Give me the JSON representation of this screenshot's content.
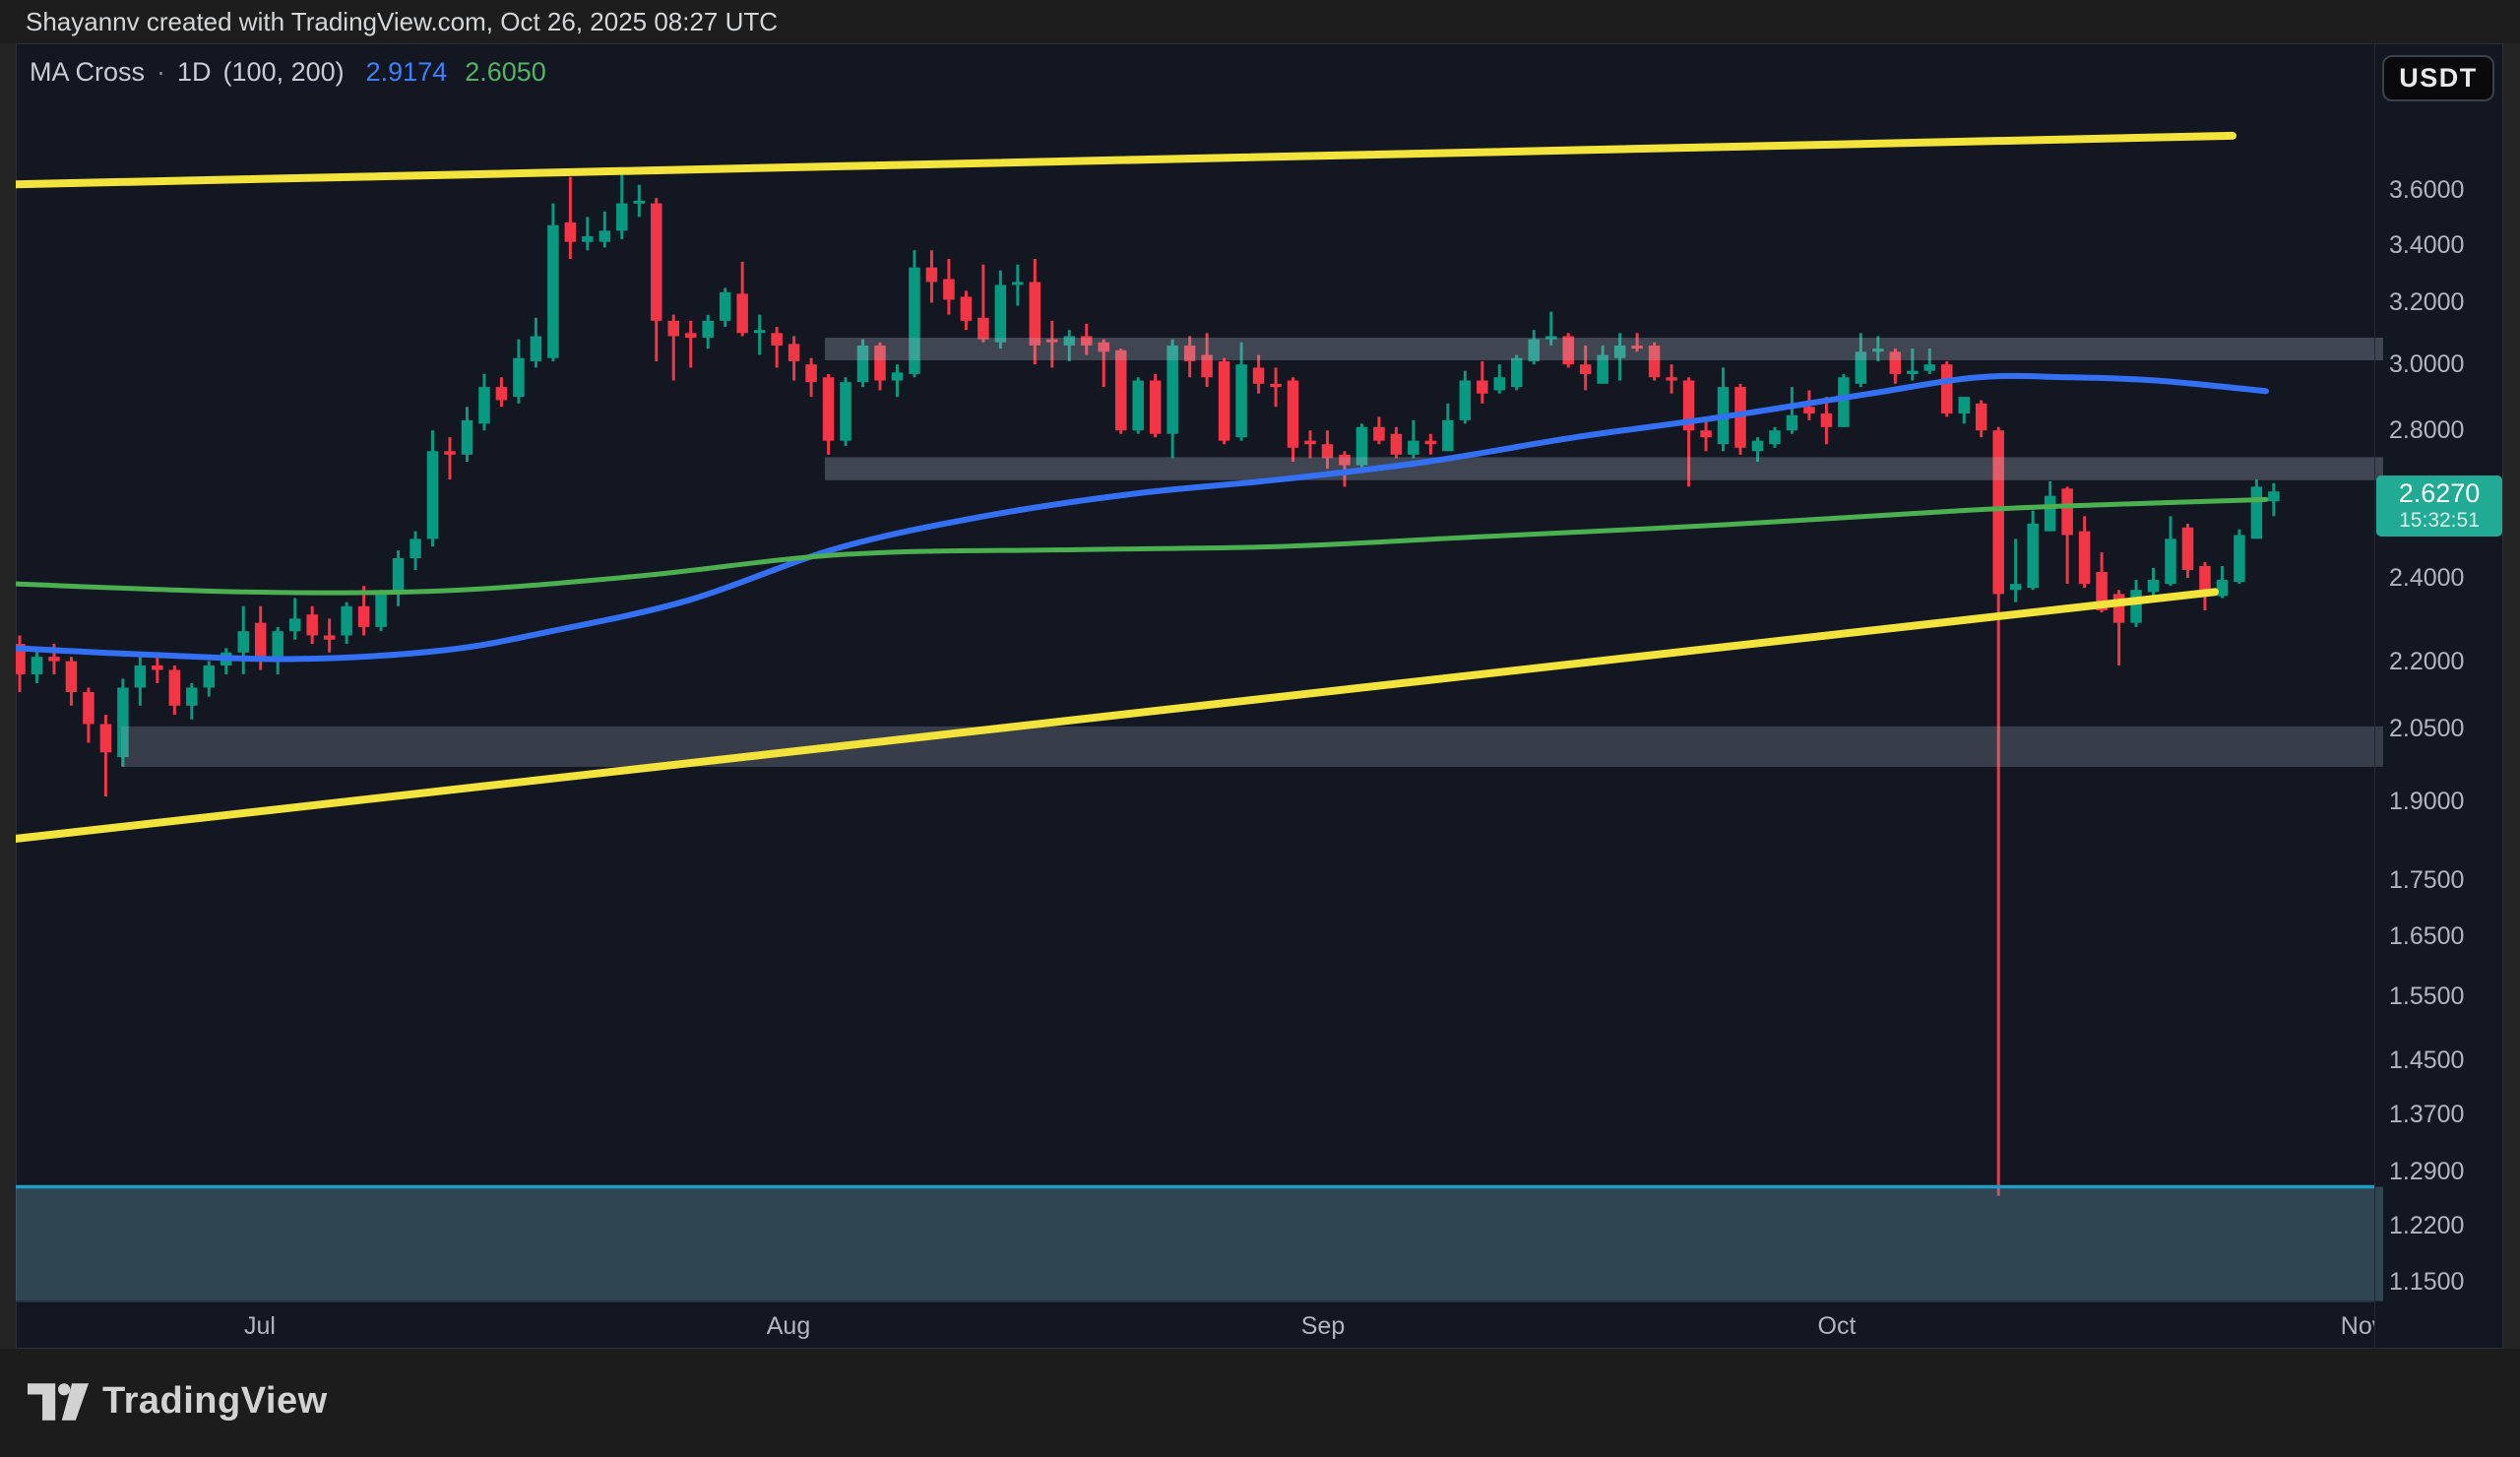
{
  "header": {
    "title": "Shayannv created with TradingView.com, Oct 26, 2025 08:27 UTC"
  },
  "legend": {
    "indicator_name": "MA Cross",
    "separator": "·",
    "interval": "1D",
    "params": "(100, 200)",
    "ma_fast_value": "2.9174",
    "ma_slow_value": "2.6050"
  },
  "symbol_button": {
    "label": "USDT"
  },
  "price_scale": {
    "labels": [
      "3.6000",
      "3.4000",
      "3.2000",
      "3.0000",
      "2.8000",
      "2.4000",
      "2.2000",
      "2.0500",
      "1.9000",
      "1.7500",
      "1.6500",
      "1.5500",
      "1.4500",
      "1.3700",
      "1.2900",
      "1.2200",
      "1.1500"
    ],
    "badge": {
      "price": "2.6270",
      "countdown": "15:32:51"
    }
  },
  "time_scale": {
    "months": [
      {
        "label": "Jul",
        "x": 264
      },
      {
        "label": "Aug",
        "x": 801
      },
      {
        "label": "Sep",
        "x": 1344
      },
      {
        "label": "Oct",
        "x": 1866
      },
      {
        "label": "Nov",
        "x": 2400
      }
    ]
  },
  "footer": {
    "brand": "TradingView"
  },
  "colors": {
    "page_bg": "#242424",
    "header_bg": "#1d1d1d",
    "footer_bg": "#1c1c1c",
    "panel_bg": "#131722",
    "panel_border": "#2a2e39",
    "up": "#089981",
    "down": "#f23645",
    "ma_fast": "#3370f4",
    "ma_slow": "#4caf50",
    "trendline": "#f3e33d",
    "badge_bg": "#22ab94",
    "axis_text": "#b2b5be",
    "header_text": "#d5d6d8",
    "legend_text": "#c9cbd2",
    "value_fast": "#3a80ff",
    "value_slow": "#54b465",
    "logo_text": "#d2d2d2",
    "button_border": "#3c4049",
    "button_bg": "#0a0a0c",
    "zone_gray": "rgba(178,190,205,0.28)",
    "zone_support": "rgba(162,180,192,0.25)",
    "zone_teal_fill": "rgba(110,165,182,0.33)",
    "zone_teal_border": "#1f9cc4"
  },
  "chart_data": {
    "type": "candlestick",
    "title": "MA Cross · 1D (100, 200)",
    "quote_currency": "USDT",
    "interval": "1D",
    "scale": "log",
    "last_price": 2.627,
    "ma_fast_last": 2.9174,
    "ma_slow_last": 2.605,
    "ylim": [
      1.127,
      3.85
    ],
    "x_axis_months": [
      "Jul",
      "Aug",
      "Sep",
      "Oct",
      "Nov"
    ],
    "plot": {
      "x1": 16,
      "y1": 44,
      "x2": 2412,
      "y2": 1322
    },
    "x_start": 20,
    "x_step": 17.48,
    "candle_body_width": 11.5,
    "y_anchors": {
      "top": {
        "price": 3.6,
        "y": 193
      },
      "bottom": {
        "price": 1.15,
        "y": 1302
      }
    },
    "candles": [
      [
        2.24,
        2.26,
        2.13,
        2.17
      ],
      [
        2.17,
        2.23,
        2.15,
        2.21
      ],
      [
        2.21,
        2.24,
        2.17,
        2.2
      ],
      [
        2.2,
        2.21,
        2.1,
        2.13
      ],
      [
        2.13,
        2.14,
        2.02,
        2.06
      ],
      [
        2.06,
        2.08,
        1.91,
        2.0
      ],
      [
        1.99,
        2.16,
        1.97,
        2.14
      ],
      [
        2.14,
        2.21,
        2.1,
        2.19
      ],
      [
        2.19,
        2.22,
        2.15,
        2.18
      ],
      [
        2.18,
        2.19,
        2.08,
        2.1
      ],
      [
        2.1,
        2.15,
        2.07,
        2.14
      ],
      [
        2.14,
        2.2,
        2.12,
        2.19
      ],
      [
        2.19,
        2.23,
        2.17,
        2.22
      ],
      [
        2.22,
        2.33,
        2.17,
        2.27
      ],
      [
        2.29,
        2.33,
        2.18,
        2.21
      ],
      [
        2.21,
        2.28,
        2.17,
        2.27
      ],
      [
        2.27,
        2.35,
        2.25,
        2.3
      ],
      [
        2.31,
        2.33,
        2.24,
        2.26
      ],
      [
        2.26,
        2.3,
        2.22,
        2.25
      ],
      [
        2.26,
        2.34,
        2.24,
        2.33
      ],
      [
        2.33,
        2.38,
        2.26,
        2.28
      ],
      [
        2.28,
        2.37,
        2.27,
        2.36
      ],
      [
        2.36,
        2.47,
        2.33,
        2.45
      ],
      [
        2.45,
        2.52,
        2.42,
        2.5
      ],
      [
        2.5,
        2.8,
        2.48,
        2.74
      ],
      [
        2.74,
        2.78,
        2.66,
        2.73
      ],
      [
        2.73,
        2.87,
        2.71,
        2.83
      ],
      [
        2.82,
        2.97,
        2.8,
        2.93
      ],
      [
        2.93,
        2.96,
        2.87,
        2.89
      ],
      [
        2.9,
        3.08,
        2.88,
        3.02
      ],
      [
        3.01,
        3.15,
        2.99,
        3.09
      ],
      [
        3.02,
        3.55,
        3.01,
        3.47
      ],
      [
        3.48,
        3.65,
        3.35,
        3.41
      ],
      [
        3.41,
        3.5,
        3.38,
        3.43
      ],
      [
        3.41,
        3.52,
        3.39,
        3.45
      ],
      [
        3.45,
        3.66,
        3.42,
        3.55
      ],
      [
        3.55,
        3.62,
        3.5,
        3.56
      ],
      [
        3.55,
        3.57,
        3.01,
        3.14
      ],
      [
        3.14,
        3.16,
        2.95,
        3.09
      ],
      [
        3.1,
        3.14,
        2.99,
        3.085
      ],
      [
        3.085,
        3.16,
        3.05,
        3.14
      ],
      [
        3.14,
        3.25,
        3.12,
        3.235
      ],
      [
        3.23,
        3.34,
        3.09,
        3.1
      ],
      [
        3.1,
        3.16,
        3.03,
        3.11
      ],
      [
        3.1,
        3.12,
        2.99,
        3.06
      ],
      [
        3.065,
        3.09,
        2.95,
        3.01
      ],
      [
        3.0,
        3.02,
        2.9,
        2.945
      ],
      [
        2.96,
        2.97,
        2.73,
        2.77
      ],
      [
        2.77,
        2.96,
        2.755,
        2.945
      ],
      [
        2.945,
        3.08,
        2.93,
        3.06
      ],
      [
        3.06,
        3.07,
        2.92,
        2.95
      ],
      [
        2.95,
        3.0,
        2.9,
        2.975
      ],
      [
        2.97,
        3.38,
        2.96,
        3.32
      ],
      [
        3.32,
        3.38,
        3.2,
        3.27
      ],
      [
        3.28,
        3.35,
        3.16,
        3.21
      ],
      [
        3.22,
        3.24,
        3.11,
        3.14
      ],
      [
        3.15,
        3.33,
        3.07,
        3.08
      ],
      [
        3.07,
        3.31,
        3.05,
        3.26
      ],
      [
        3.26,
        3.33,
        3.19,
        3.27
      ],
      [
        3.27,
        3.35,
        3.0,
        3.06
      ],
      [
        3.08,
        3.14,
        2.99,
        3.07
      ],
      [
        3.06,
        3.11,
        3.01,
        3.09
      ],
      [
        3.09,
        3.13,
        3.03,
        3.06
      ],
      [
        3.07,
        3.08,
        2.93,
        3.04
      ],
      [
        3.045,
        3.05,
        2.79,
        2.8
      ],
      [
        2.8,
        2.96,
        2.79,
        2.95
      ],
      [
        2.95,
        2.97,
        2.78,
        2.79
      ],
      [
        2.79,
        3.08,
        2.72,
        3.06
      ],
      [
        3.06,
        3.09,
        2.96,
        3.01
      ],
      [
        3.03,
        3.1,
        2.93,
        2.96
      ],
      [
        3.01,
        3.02,
        2.76,
        2.77
      ],
      [
        2.78,
        3.07,
        2.77,
        3.0
      ],
      [
        2.99,
        3.03,
        2.91,
        2.94
      ],
      [
        2.94,
        2.99,
        2.87,
        2.93
      ],
      [
        2.95,
        2.96,
        2.71,
        2.75
      ],
      [
        2.77,
        2.8,
        2.72,
        2.76
      ],
      [
        2.76,
        2.8,
        2.69,
        2.72
      ],
      [
        2.73,
        2.74,
        2.64,
        2.7
      ],
      [
        2.7,
        2.82,
        2.69,
        2.81
      ],
      [
        2.81,
        2.84,
        2.76,
        2.77
      ],
      [
        2.79,
        2.81,
        2.72,
        2.73
      ],
      [
        2.73,
        2.83,
        2.72,
        2.77
      ],
      [
        2.77,
        2.79,
        2.73,
        2.76
      ],
      [
        2.74,
        2.88,
        2.74,
        2.83
      ],
      [
        2.83,
        2.98,
        2.82,
        2.95
      ],
      [
        2.95,
        3.01,
        2.88,
        2.91
      ],
      [
        2.92,
        3.0,
        2.91,
        2.96
      ],
      [
        2.93,
        3.03,
        2.92,
        3.02
      ],
      [
        3.01,
        3.11,
        3.0,
        3.08
      ],
      [
        3.08,
        3.17,
        3.06,
        3.09
      ],
      [
        3.09,
        3.1,
        2.99,
        3.0
      ],
      [
        3.0,
        3.06,
        2.92,
        2.97
      ],
      [
        2.94,
        3.06,
        2.94,
        3.03
      ],
      [
        3.02,
        3.1,
        2.95,
        3.06
      ],
      [
        3.06,
        3.1,
        3.04,
        3.05
      ],
      [
        3.06,
        3.07,
        2.95,
        2.96
      ],
      [
        2.96,
        3.0,
        2.91,
        2.95
      ],
      [
        2.95,
        2.96,
        2.64,
        2.8
      ],
      [
        2.8,
        2.84,
        2.74,
        2.78
      ],
      [
        2.76,
        2.99,
        2.74,
        2.93
      ],
      [
        2.93,
        2.94,
        2.73,
        2.75
      ],
      [
        2.74,
        2.78,
        2.71,
        2.77
      ],
      [
        2.76,
        2.81,
        2.75,
        2.8
      ],
      [
        2.8,
        2.93,
        2.79,
        2.845
      ],
      [
        2.87,
        2.92,
        2.83,
        2.85
      ],
      [
        2.85,
        2.9,
        2.76,
        2.81
      ],
      [
        2.81,
        2.97,
        2.81,
        2.96
      ],
      [
        2.94,
        3.1,
        2.93,
        3.04
      ],
      [
        3.04,
        3.09,
        3.01,
        3.05
      ],
      [
        3.04,
        3.05,
        2.94,
        2.97
      ],
      [
        2.97,
        3.05,
        2.95,
        2.98
      ],
      [
        2.98,
        3.05,
        2.97,
        3.0
      ],
      [
        3.0,
        3.01,
        2.84,
        2.85
      ],
      [
        2.85,
        2.9,
        2.82,
        2.9
      ],
      [
        2.88,
        2.89,
        2.78,
        2.8
      ],
      [
        2.8,
        2.81,
        1.258,
        2.36
      ],
      [
        2.37,
        2.5,
        2.34,
        2.385
      ],
      [
        2.375,
        2.575,
        2.37,
        2.54
      ],
      [
        2.52,
        2.655,
        2.52,
        2.615
      ],
      [
        2.635,
        2.64,
        2.385,
        2.51
      ],
      [
        2.52,
        2.56,
        2.375,
        2.385
      ],
      [
        2.415,
        2.465,
        2.315,
        2.32
      ],
      [
        2.36,
        2.37,
        2.19,
        2.29
      ],
      [
        2.29,
        2.395,
        2.28,
        2.37
      ],
      [
        2.365,
        2.425,
        2.345,
        2.395
      ],
      [
        2.385,
        2.56,
        2.38,
        2.5
      ],
      [
        2.53,
        2.54,
        2.4,
        2.42
      ],
      [
        2.43,
        2.44,
        2.32,
        2.355
      ],
      [
        2.355,
        2.43,
        2.35,
        2.395
      ],
      [
        2.39,
        2.525,
        2.385,
        2.51
      ],
      [
        2.5,
        2.66,
        2.5,
        2.64
      ],
      [
        2.6,
        2.65,
        2.56,
        2.627
      ]
    ],
    "ma_fast_points": [
      [
        16,
        2.23
      ],
      [
        150,
        2.215
      ],
      [
        300,
        2.205
      ],
      [
        450,
        2.225
      ],
      [
        560,
        2.27
      ],
      [
        700,
        2.345
      ],
      [
        850,
        2.475
      ],
      [
        1000,
        2.56
      ],
      [
        1150,
        2.62
      ],
      [
        1300,
        2.66
      ],
      [
        1450,
        2.71
      ],
      [
        1600,
        2.78
      ],
      [
        1750,
        2.84
      ],
      [
        1900,
        2.91
      ],
      [
        2010,
        2.96
      ],
      [
        2100,
        2.96
      ],
      [
        2190,
        2.95
      ],
      [
        2302,
        2.9174
      ]
    ],
    "ma_slow_points": [
      [
        16,
        2.385
      ],
      [
        250,
        2.365
      ],
      [
        450,
        2.368
      ],
      [
        650,
        2.405
      ],
      [
        860,
        2.46
      ],
      [
        1100,
        2.472
      ],
      [
        1300,
        2.48
      ],
      [
        1500,
        2.505
      ],
      [
        1750,
        2.537
      ],
      [
        2000,
        2.576
      ],
      [
        2150,
        2.592
      ],
      [
        2302,
        2.605
      ]
    ],
    "trendlines": [
      {
        "name": "upper-channel",
        "x1": 0,
        "p1": 3.62,
        "x2": 2268,
        "p2": 3.81,
        "width": 8
      },
      {
        "name": "lower-channel",
        "x1": 0,
        "p1": 1.824,
        "x2": 2250,
        "p2": 2.365,
        "width": 8
      }
    ],
    "zones": [
      {
        "name": "resistance-zone-3.0",
        "x1": 838,
        "x2": 2412,
        "p_top": 3.085,
        "p_bottom": 3.013,
        "style": "gray"
      },
      {
        "name": "resistance-zone-2.7",
        "x1": 838,
        "x2": 2412,
        "p_top": 2.723,
        "p_bottom": 2.658,
        "style": "gray"
      },
      {
        "name": "support-zone-2.0",
        "x1": 123,
        "x2": 2412,
        "p_top": 2.055,
        "p_bottom": 1.97,
        "style": "support"
      },
      {
        "name": "support-zone-1.2",
        "x1": 16,
        "x2": 2412,
        "p_top": 1.27,
        "p_bottom": 1.127,
        "style": "teal",
        "top_border": true
      }
    ]
  }
}
